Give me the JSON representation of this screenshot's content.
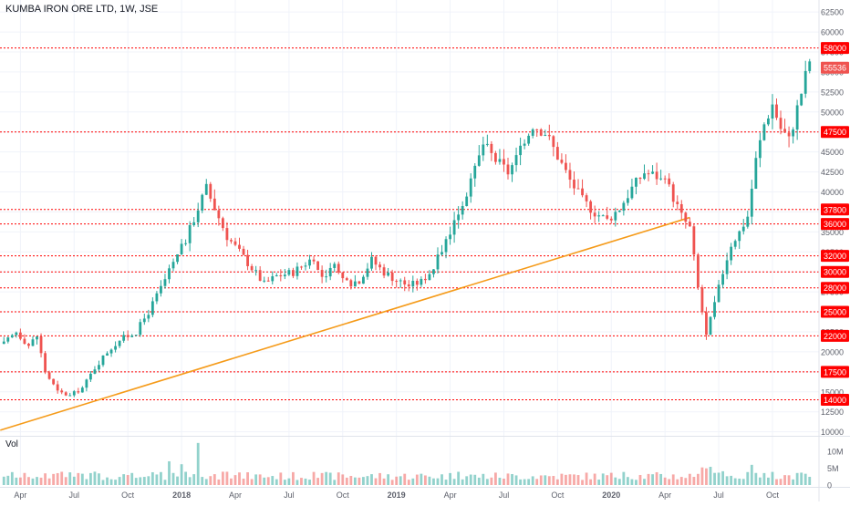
{
  "header": {
    "title": "KUMBA IRON ORE LTD, 1W, JSE"
  },
  "volume_pane": {
    "label": "Vol",
    "ticks": [
      "10M",
      "5M",
      "0"
    ]
  },
  "chart_data": {
    "type": "candlestick",
    "title": "KUMBA IRON ORE LTD, 1W, JSE",
    "symbol": "KUMBA IRON ORE LTD",
    "interval": "1W",
    "exchange": "JSE",
    "ylim": [
      9500,
      64000
    ],
    "y_ticks": [
      10000,
      12500,
      15000,
      17500,
      20000,
      22500,
      25000,
      27500,
      30000,
      32500,
      35000,
      37500,
      40000,
      42500,
      45000,
      47500,
      50000,
      52500,
      55000,
      57500,
      60000,
      62500
    ],
    "x_ticks": [
      "Apr",
      "Jul",
      "Oct",
      "2018",
      "Apr",
      "Jul",
      "Oct",
      "2019",
      "Apr",
      "Jul",
      "Oct",
      "2020",
      "Apr",
      "Jul",
      "Oct"
    ],
    "x_tick_weeks": [
      4,
      17,
      30,
      43,
      56,
      69,
      82,
      95,
      108,
      121,
      134,
      147,
      160,
      173,
      186
    ],
    "total_weeks": 196,
    "current_price": {
      "label": "55536",
      "value": 55536,
      "color": "#ef5350"
    },
    "horizontal_levels": [
      {
        "label": "58000",
        "value": 58000
      },
      {
        "label": "47500",
        "value": 47500
      },
      {
        "label": "37800",
        "value": 37800
      },
      {
        "label": "36000",
        "value": 36000
      },
      {
        "label": "32000",
        "value": 32000
      },
      {
        "label": "30000",
        "value": 30000
      },
      {
        "label": "28000",
        "value": 28000
      },
      {
        "label": "25000",
        "value": 25000
      },
      {
        "label": "22000",
        "value": 22000
      },
      {
        "label": "17500",
        "value": 17500
      },
      {
        "label": "14000",
        "value": 14000
      }
    ],
    "level_color": "#ff0000",
    "trendline": {
      "x1": 0,
      "y1": 10200,
      "x2": 166,
      "y2": 36800,
      "color": "#f59b1a"
    },
    "up_color": "#26a69a",
    "down_color": "#ef5350",
    "volume_scale_max": 13000000,
    "price_path": [
      {
        "w": 0,
        "p": 21000
      },
      {
        "w": 3,
        "p": 22500
      },
      {
        "w": 6,
        "p": 20800
      },
      {
        "w": 8,
        "p": 22000
      },
      {
        "w": 10,
        "p": 17500
      },
      {
        "w": 13,
        "p": 15000
      },
      {
        "w": 16,
        "p": 14500
      },
      {
        "w": 19,
        "p": 15500
      },
      {
        "w": 22,
        "p": 18000
      },
      {
        "w": 25,
        "p": 20000
      },
      {
        "w": 28,
        "p": 21500
      },
      {
        "w": 32,
        "p": 22500
      },
      {
        "w": 35,
        "p": 25000
      },
      {
        "w": 38,
        "p": 28000
      },
      {
        "w": 41,
        "p": 31000
      },
      {
        "w": 44,
        "p": 34000
      },
      {
        "w": 47,
        "p": 38000
      },
      {
        "w": 49,
        "p": 40500
      },
      {
        "w": 51,
        "p": 38000
      },
      {
        "w": 54,
        "p": 34500
      },
      {
        "w": 57,
        "p": 32500
      },
      {
        "w": 60,
        "p": 30500
      },
      {
        "w": 63,
        "p": 28500
      },
      {
        "w": 66,
        "p": 29500
      },
      {
        "w": 70,
        "p": 30000
      },
      {
        "w": 74,
        "p": 31500
      },
      {
        "w": 77,
        "p": 29500
      },
      {
        "w": 80,
        "p": 30500
      },
      {
        "w": 83,
        "p": 28500
      },
      {
        "w": 86,
        "p": 29000
      },
      {
        "w": 89,
        "p": 31500
      },
      {
        "w": 92,
        "p": 30000
      },
      {
        "w": 95,
        "p": 29000
      },
      {
        "w": 98,
        "p": 28300
      },
      {
        "w": 101,
        "p": 28800
      },
      {
        "w": 104,
        "p": 30500
      },
      {
        "w": 107,
        "p": 34000
      },
      {
        "w": 110,
        "p": 37500
      },
      {
        "w": 113,
        "p": 41000
      },
      {
        "w": 116,
        "p": 46000
      },
      {
        "w": 119,
        "p": 44000
      },
      {
        "w": 122,
        "p": 42500
      },
      {
        "w": 125,
        "p": 45000
      },
      {
        "w": 128,
        "p": 48500
      },
      {
        "w": 131,
        "p": 47500
      },
      {
        "w": 134,
        "p": 44500
      },
      {
        "w": 137,
        "p": 41500
      },
      {
        "w": 140,
        "p": 39000
      },
      {
        "w": 143,
        "p": 37500
      },
      {
        "w": 146,
        "p": 36500
      },
      {
        "w": 149,
        "p": 38000
      },
      {
        "w": 152,
        "p": 40500
      },
      {
        "w": 155,
        "p": 42500
      },
      {
        "w": 158,
        "p": 42000
      },
      {
        "w": 161,
        "p": 40500
      },
      {
        "w": 164,
        "p": 37000
      },
      {
        "w": 166,
        "p": 35500
      },
      {
        "w": 168,
        "p": 28000
      },
      {
        "w": 170,
        "p": 22000
      },
      {
        "w": 172,
        "p": 26000
      },
      {
        "w": 174,
        "p": 30000
      },
      {
        "w": 176,
        "p": 33500
      },
      {
        "w": 178,
        "p": 35000
      },
      {
        "w": 180,
        "p": 37000
      },
      {
        "w": 182,
        "p": 44000
      },
      {
        "w": 184,
        "p": 48500
      },
      {
        "w": 186,
        "p": 51000
      },
      {
        "w": 188,
        "p": 48000
      },
      {
        "w": 190,
        "p": 46500
      },
      {
        "w": 192,
        "p": 50500
      },
      {
        "w": 194,
        "p": 54500
      },
      {
        "w": 195,
        "p": 56500
      }
    ]
  }
}
